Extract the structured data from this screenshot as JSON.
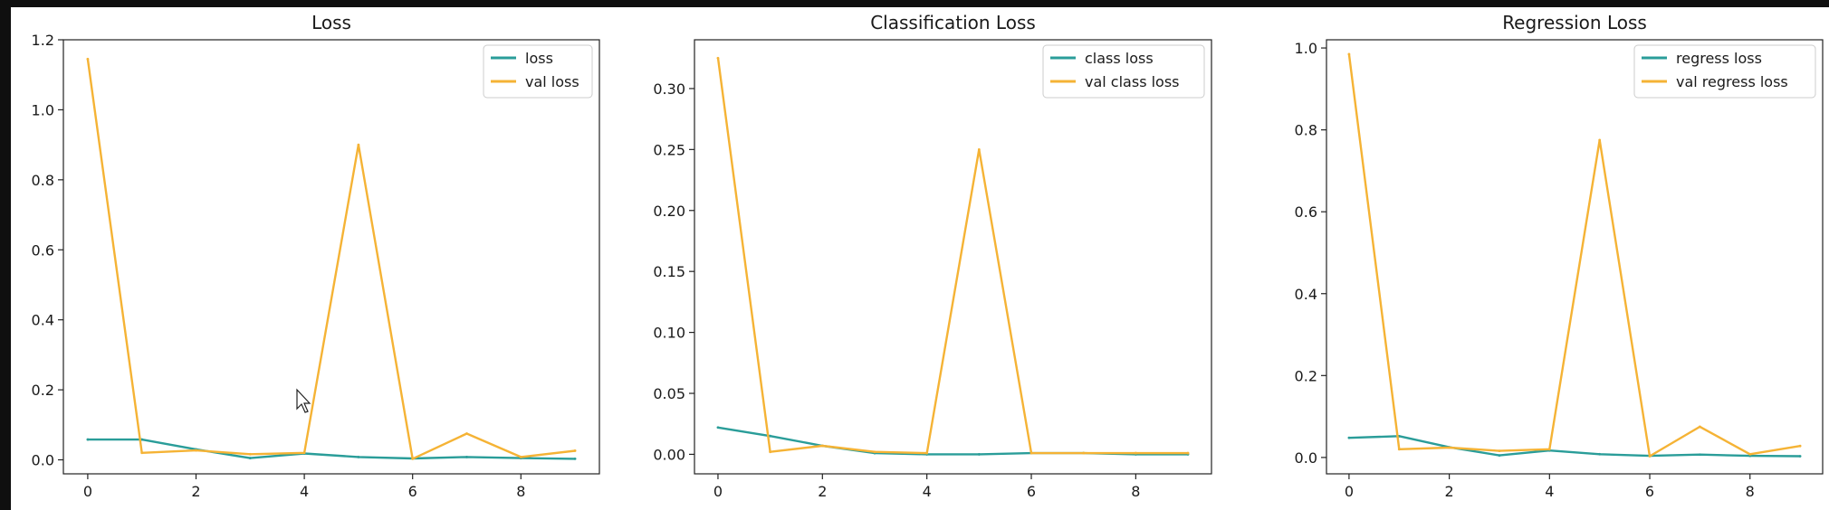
{
  "chart_data": [
    {
      "type": "line",
      "title": "Loss",
      "x": [
        0,
        1,
        2,
        3,
        4,
        5,
        6,
        7,
        8,
        9
      ],
      "xlim": [
        -0.45,
        9.45
      ],
      "ylim": [
        -0.04,
        1.2
      ],
      "xticks": [
        0,
        2,
        4,
        6,
        8
      ],
      "yticks": [
        0.0,
        0.2,
        0.4,
        0.6,
        0.8,
        1.0,
        1.2
      ],
      "ytick_labels": [
        "0.0",
        "0.2",
        "0.4",
        "0.6",
        "0.8",
        "1.0",
        "1.2"
      ],
      "legend_position": "top-right",
      "series": [
        {
          "name": "loss",
          "color": "#2a9d99",
          "values": [
            0.058,
            0.058,
            0.03,
            0.005,
            0.018,
            0.008,
            0.004,
            0.008,
            0.005,
            0.003
          ]
        },
        {
          "name": "val loss",
          "color": "#f5b335",
          "values": [
            1.145,
            0.02,
            0.027,
            0.016,
            0.02,
            0.9,
            0.003,
            0.075,
            0.008,
            0.026
          ]
        }
      ]
    },
    {
      "type": "line",
      "title": "Classification Loss",
      "x": [
        0,
        1,
        2,
        3,
        4,
        5,
        6,
        7,
        8,
        9
      ],
      "xlim": [
        -0.45,
        9.45
      ],
      "ylim": [
        -0.016,
        0.34
      ],
      "xticks": [
        0,
        2,
        4,
        6,
        8
      ],
      "yticks": [
        0.0,
        0.05,
        0.1,
        0.15,
        0.2,
        0.25,
        0.3
      ],
      "ytick_labels": [
        "0.00",
        "0.05",
        "0.10",
        "0.15",
        "0.20",
        "0.25",
        "0.30"
      ],
      "legend_position": "top-right",
      "series": [
        {
          "name": "class loss",
          "color": "#2a9d99",
          "values": [
            0.022,
            0.015,
            0.007,
            0.001,
            0.0,
            0.0,
            0.001,
            0.001,
            0.0,
            0.0
          ]
        },
        {
          "name": "val class loss",
          "color": "#f5b335",
          "values": [
            0.325,
            0.002,
            0.007,
            0.002,
            0.001,
            0.25,
            0.001,
            0.001,
            0.001,
            0.001
          ]
        }
      ]
    },
    {
      "type": "line",
      "title": "Regression Loss",
      "x": [
        0,
        1,
        2,
        3,
        4,
        5,
        6,
        7,
        8,
        9
      ],
      "xlim": [
        -0.45,
        9.45
      ],
      "ylim": [
        -0.04,
        1.02
      ],
      "xticks": [
        0,
        2,
        4,
        6,
        8
      ],
      "yticks": [
        0.0,
        0.2,
        0.4,
        0.6,
        0.8,
        1.0
      ],
      "ytick_labels": [
        "0.0",
        "0.2",
        "0.4",
        "0.6",
        "0.8",
        "1.0"
      ],
      "legend_position": "top-right",
      "series": [
        {
          "name": "regress loss",
          "color": "#2a9d99",
          "values": [
            0.048,
            0.052,
            0.025,
            0.005,
            0.017,
            0.008,
            0.004,
            0.007,
            0.004,
            0.003
          ]
        },
        {
          "name": "val regress loss",
          "color": "#f5b335",
          "values": [
            0.985,
            0.02,
            0.024,
            0.016,
            0.02,
            0.775,
            0.003,
            0.075,
            0.008,
            0.028
          ]
        }
      ]
    }
  ]
}
